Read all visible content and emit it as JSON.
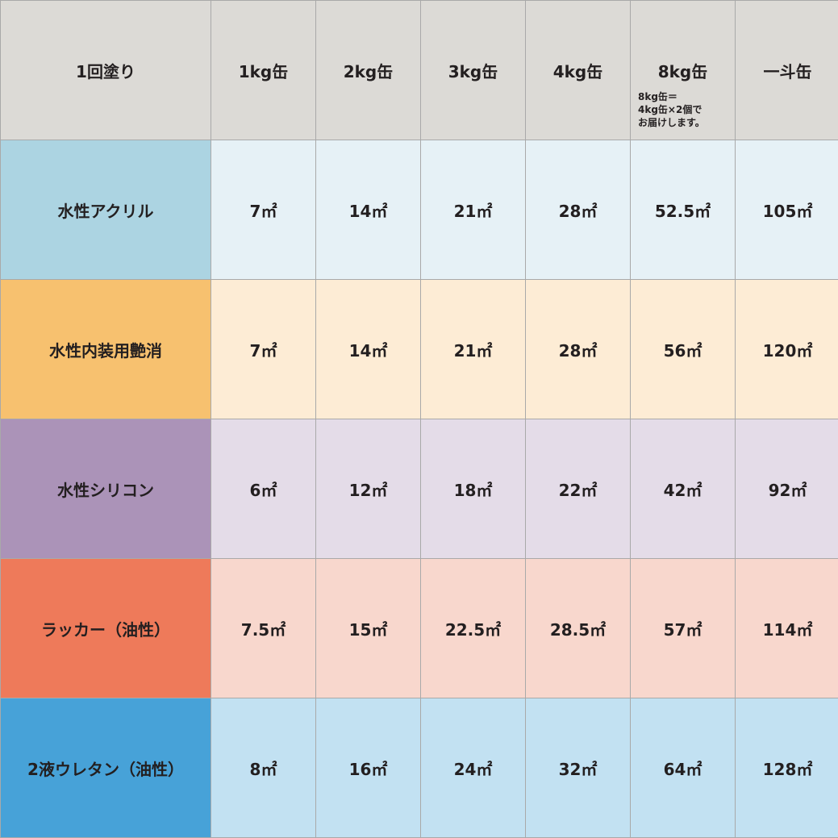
{
  "header": {
    "corner": "1回塗り",
    "columns": [
      "1kg缶",
      "2kg缶",
      "3kg缶",
      "4kg缶",
      "8kg缶",
      "一斗缶"
    ],
    "note_lines": [
      "8kg缶＝",
      "4kg缶×2個で",
      "お届けします。"
    ]
  },
  "rows": [
    {
      "label": "水性アクリル",
      "label_color": "#acd4e2",
      "cell_color": "#e6f1f6",
      "values": [
        "7㎡",
        "14㎡",
        "21㎡",
        "28㎡",
        "52.5㎡",
        "105㎡"
      ]
    },
    {
      "label": "水性内装用艶消",
      "label_color": "#f7c16f",
      "cell_color": "#fdecd5",
      "values": [
        "7㎡",
        "14㎡",
        "21㎡",
        "28㎡",
        "56㎡",
        "120㎡"
      ]
    },
    {
      "label": "水性シリコン",
      "label_color": "#ab93b8",
      "cell_color": "#e4dce8",
      "values": [
        "6㎡",
        "12㎡",
        "18㎡",
        "22㎡",
        "42㎡",
        "92㎡"
      ]
    },
    {
      "label": "ラッカー（油性）",
      "label_color": "#ee7a5a",
      "cell_color": "#f8d7cd",
      "values": [
        "7.5㎡",
        "15㎡",
        "22.5㎡",
        "28.5㎡",
        "57㎡",
        "114㎡"
      ]
    },
    {
      "label": "2液ウレタン（油性）",
      "label_color": "#47a2d8",
      "cell_color": "#c2e1f2",
      "values": [
        "8㎡",
        "16㎡",
        "24㎡",
        "32㎡",
        "64㎡",
        "128㎡"
      ]
    }
  ]
}
